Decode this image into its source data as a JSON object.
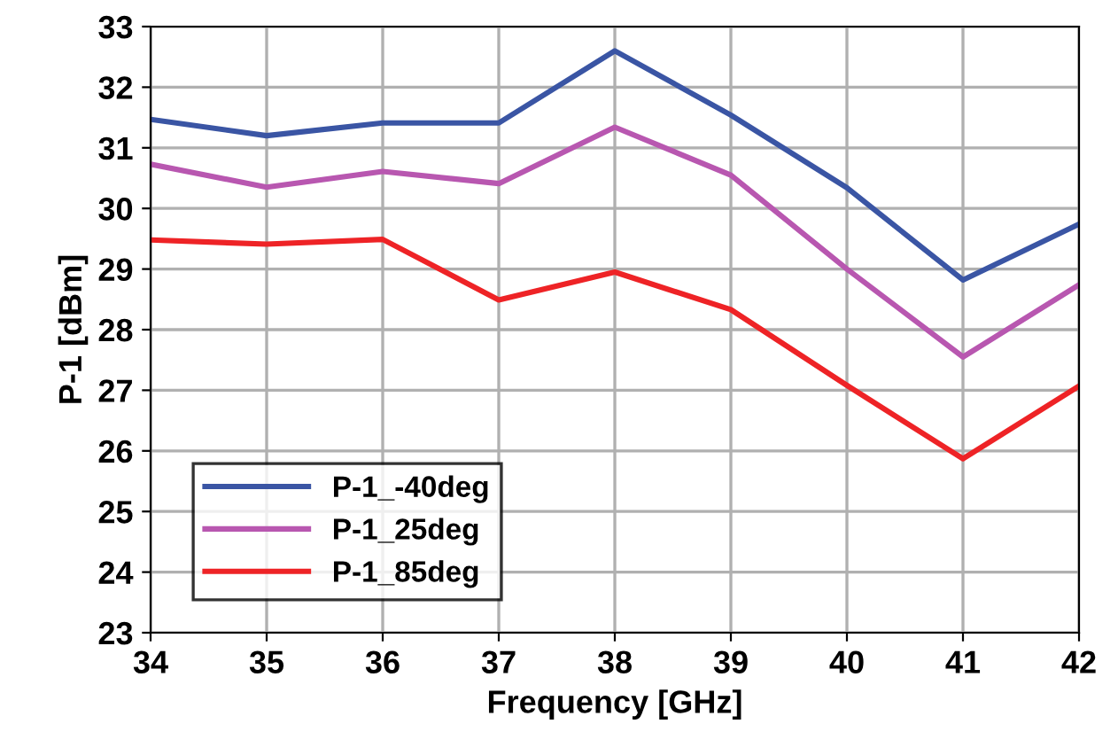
{
  "chart_data": {
    "type": "line",
    "xlabel": "Frequency [GHz]",
    "ylabel": "P-1 [dBm]",
    "x": [
      34,
      35,
      36,
      37,
      38,
      39,
      40,
      41,
      42
    ],
    "series": [
      {
        "name": "P-1_-40deg",
        "color": "#3a55a4",
        "values": [
          31.47,
          31.2,
          31.41,
          31.41,
          32.6,
          31.54,
          30.34,
          28.82,
          29.74
        ]
      },
      {
        "name": "P-1_25deg",
        "color": "#b857b0",
        "values": [
          30.73,
          30.35,
          30.61,
          30.41,
          31.34,
          30.55,
          29.0,
          27.55,
          28.74
        ]
      },
      {
        "name": "P-1_85deg",
        "color": "#ee2326",
        "values": [
          29.48,
          29.41,
          29.49,
          28.49,
          28.95,
          28.33,
          27.08,
          25.87,
          27.07
        ]
      }
    ],
    "xlim": [
      34,
      42
    ],
    "ylim": [
      23,
      33
    ],
    "xticks": [
      34,
      35,
      36,
      37,
      38,
      39,
      40,
      41,
      42
    ],
    "yticks": [
      23,
      24,
      25,
      26,
      27,
      28,
      29,
      30,
      31,
      32,
      33
    ],
    "grid": true,
    "legend": "bottom left",
    "marker": "none",
    "line_style": "solid"
  }
}
